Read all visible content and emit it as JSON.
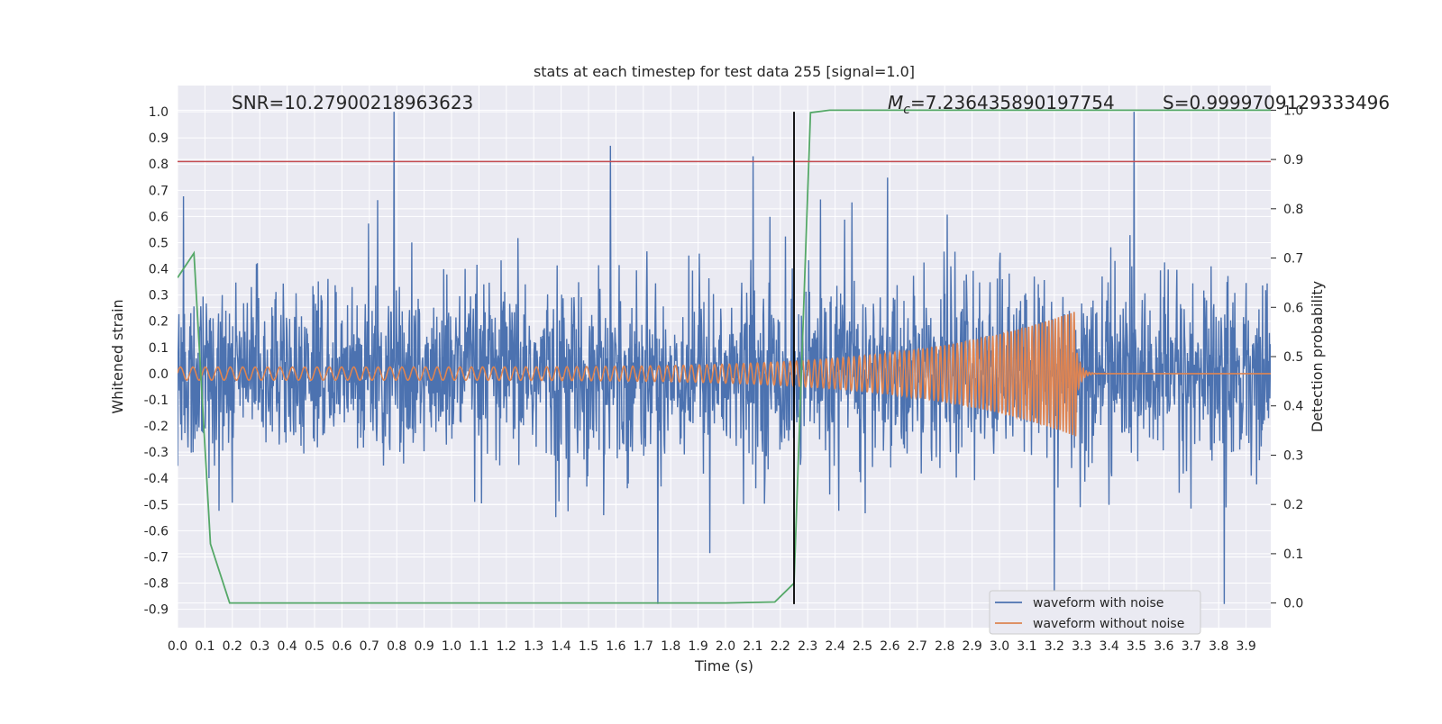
{
  "chart_data": {
    "type": "line",
    "title": "stats at each timestep for test data 255 [signal=1.0]",
    "xlabel": "Time (s)",
    "ylabel": "Whitened strain",
    "ylabel_right": "Detection probability",
    "xlim": [
      0.0,
      3.99
    ],
    "ylim": [
      -0.97,
      1.1
    ],
    "ylim_right": [
      -0.05,
      1.05
    ],
    "x_ticks": [
      0.0,
      0.1,
      0.2,
      0.3,
      0.4,
      0.5,
      0.6,
      0.7,
      0.8,
      0.9,
      1.0,
      1.1,
      1.2,
      1.3,
      1.4,
      1.5,
      1.6,
      1.7,
      1.8,
      1.9,
      2.0,
      2.1,
      2.2,
      2.3,
      2.4,
      2.5,
      2.6,
      2.7,
      2.8,
      2.9,
      3.0,
      3.1,
      3.2,
      3.3,
      3.4,
      3.5,
      3.6,
      3.7,
      3.8,
      3.9
    ],
    "y_ticks": [
      1.0,
      0.9,
      0.8,
      0.7,
      0.6,
      0.5,
      0.4,
      0.3,
      0.2,
      0.1,
      0.0,
      -0.1,
      -0.2,
      -0.3,
      -0.4,
      -0.5,
      -0.6,
      -0.7,
      -0.8,
      -0.9
    ],
    "y_ticks_right": [
      1.0,
      0.9,
      0.8,
      0.7,
      0.6,
      0.5,
      0.4,
      0.3,
      0.2,
      0.1,
      0.0
    ],
    "grid": true,
    "legend_position": "bottom-right",
    "annotations": {
      "snr": "SNR=10.27900218963623",
      "mc": "=7.236435890197754",
      "mc_symbol": "M",
      "mc_subscript": "c",
      "s": "S=0.9999709129333496"
    },
    "series": [
      {
        "name": "waveform with noise",
        "color": "#4c72b0",
        "axis": "left",
        "kind": "noise",
        "noise_amplitude": 0.22,
        "sample_points": 2400,
        "spikes": [
          {
            "t": 0.79,
            "v": 1.0
          },
          {
            "t": 1.58,
            "v": 0.87
          },
          {
            "t": 2.1,
            "v": 0.83
          },
          {
            "t": 3.82,
            "v": -0.88
          },
          {
            "t": 3.2,
            "v": -0.85
          }
        ]
      },
      {
        "name": "waveform without noise",
        "color": "#dd8452",
        "axis": "left",
        "kind": "chirp",
        "t_start": 0.0,
        "t_merger": 3.28,
        "amp_start": 0.025,
        "amp_peak": 0.24,
        "cycles_start_hz": 22,
        "cycles_end_hz": 90
      },
      {
        "name": "detection probability",
        "color": "#55a868",
        "axis": "right",
        "kind": "line",
        "x": [
          0.0,
          0.06,
          0.12,
          0.19,
          0.3,
          1.0,
          2.0,
          2.18,
          2.25,
          2.31,
          2.38,
          3.0,
          3.99
        ],
        "y": [
          0.66,
          0.71,
          0.12,
          0.0,
          0.0,
          0.0,
          0.0,
          0.002,
          0.04,
          0.995,
          1.0,
          1.0,
          1.0
        ]
      }
    ],
    "reference_lines": [
      {
        "type": "horizontal",
        "y": 0.81,
        "color": "#c44e52",
        "axis": "left"
      },
      {
        "type": "vertical",
        "x": 2.25,
        "color": "#000000",
        "y_from": -0.88,
        "y_to": 1.0,
        "axis": "left"
      }
    ]
  }
}
